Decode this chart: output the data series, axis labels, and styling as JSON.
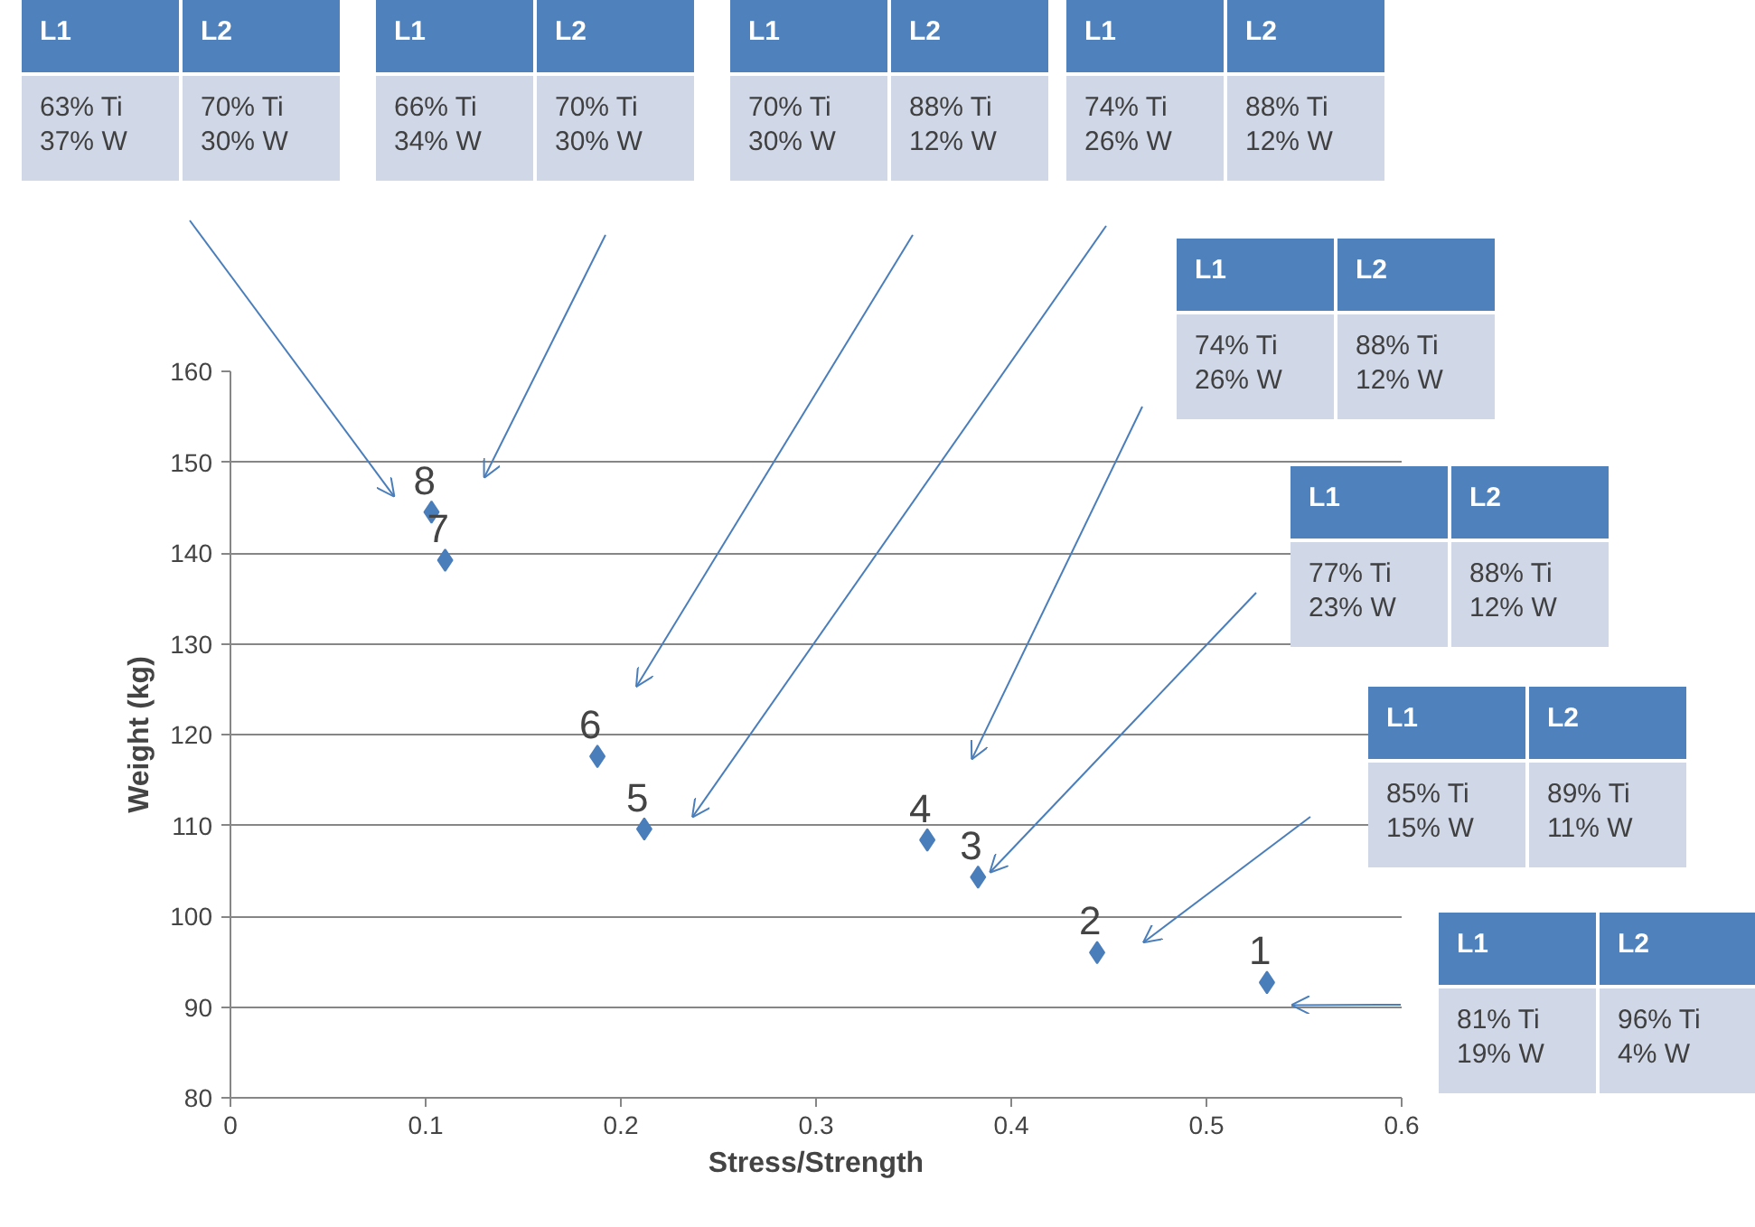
{
  "chart_data": {
    "type": "scatter",
    "xlabel": "Stress/Strength",
    "ylabel": "Weight (kg)",
    "x": [
      0.531,
      0.444,
      0.383,
      0.357,
      0.212,
      0.188,
      0.11,
      0.103
    ],
    "values": [
      92.7,
      96.0,
      104.3,
      108.4,
      109.6,
      117.6,
      139.2,
      144.5
    ],
    "color": "#4a7ebb",
    "marker": "diamond",
    "grid": "y",
    "xlim": [
      0,
      0.6
    ],
    "ylim": [
      80,
      160
    ],
    "xticks": [
      0,
      0.1,
      0.2,
      0.3,
      0.4,
      0.5,
      0.6
    ],
    "yticks": [
      80,
      90,
      100,
      110,
      120,
      130,
      140,
      150,
      160
    ],
    "annotations": [
      {
        "text": "1",
        "x": 0.531,
        "y": 92.7
      },
      {
        "text": "2",
        "x": 0.444,
        "y": 96.0
      },
      {
        "text": "3",
        "x": 0.383,
        "y": 104.3
      },
      {
        "text": "4",
        "x": 0.357,
        "y": 108.4
      },
      {
        "text": "5",
        "x": 0.212,
        "y": 109.6
      },
      {
        "text": "6",
        "x": 0.188,
        "y": 117.6
      },
      {
        "text": "7",
        "x": 0.11,
        "y": 139.2
      },
      {
        "text": "8",
        "x": 0.103,
        "y": 144.5
      },
      "L1",
      "L2",
      "63% Ti\n37% W",
      "70% Ti\n30% W",
      "L1",
      "L2",
      "66% Ti\n34% W",
      "70% Ti\n30% W",
      "L1",
      "L2",
      "70% Ti\n30% W",
      "88% Ti\n12% W",
      "L1",
      "L2",
      "74% Ti\n26% W",
      "88% Ti\n12% W",
      "L1",
      "L2",
      "74% Ti\n26% W",
      "88% Ti\n12% W",
      "L1",
      "L2",
      "77% Ti\n23% W",
      "88% Ti\n12% W",
      "L1",
      "L2",
      "85% Ti\n15% W",
      "89% Ti\n11% W",
      "L1",
      "L2",
      "81% Ti\n19% W",
      "96% Ti\n4% W"
    ]
  }
}
